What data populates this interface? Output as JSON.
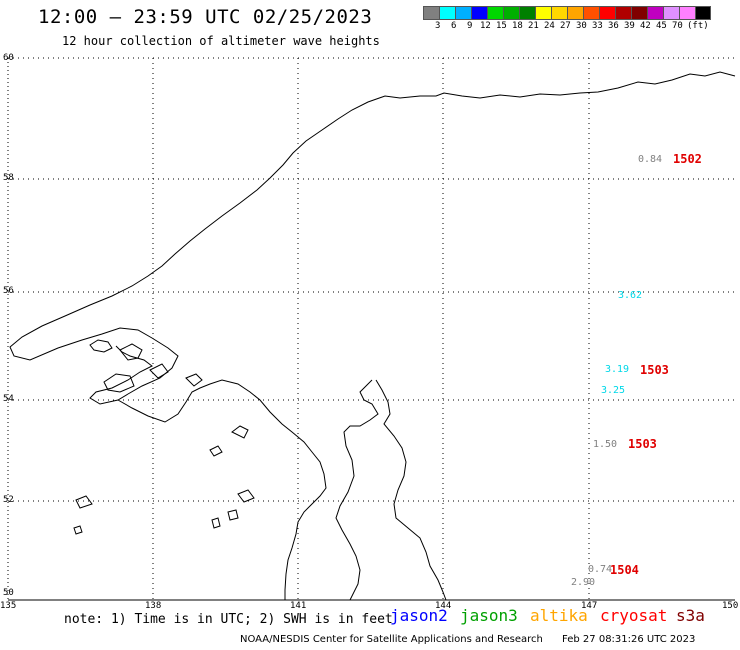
{
  "header": {
    "title": "12:00 — 23:59 UTC 02/25/2023",
    "subtitle": "12 hour collection of altimeter wave heights"
  },
  "color_scale": {
    "colors": [
      "#808080",
      "#00ffff",
      "#00b0ff",
      "#0000ff",
      "#00d800",
      "#00b000",
      "#008000",
      "#ffff00",
      "#ffd700",
      "#ffa500",
      "#ff5000",
      "#ff0000",
      "#b00000",
      "#800000",
      "#c000c0",
      "#e090ff",
      "#ff80ff",
      "#000000"
    ],
    "labels": [
      "3",
      "6",
      "9",
      "12",
      "15",
      "18",
      "21",
      "24",
      "27",
      "30",
      "33",
      "36",
      "39",
      "42",
      "45",
      "70"
    ],
    "unit": "(ft)"
  },
  "axes": {
    "lat_labels": [
      "60",
      "58",
      "56",
      "54",
      "52",
      "50"
    ],
    "lon_labels": [
      "135",
      "138",
      "141",
      "144",
      "147",
      "150"
    ]
  },
  "observations": [
    {
      "value": "0.84",
      "color": "#808080"
    },
    {
      "value": "3.62",
      "color": "#00e0f0"
    },
    {
      "value": "3.19",
      "color": "#00e0f0"
    },
    {
      "value": "3.25",
      "color": "#00e0f0"
    },
    {
      "value": "1.50",
      "color": "#808080"
    },
    {
      "value": "0.74",
      "color": "#808080"
    },
    {
      "value": "2.90",
      "color": "#808080"
    }
  ],
  "buoys": [
    "1502",
    "1503",
    "1503",
    "1504"
  ],
  "legend": {
    "note": "note: 1) Time is in UTC; 2) SWH is in feet",
    "satellites": [
      {
        "name": "jason2",
        "color": "#0000ff"
      },
      {
        "name": "jason3",
        "color": "#00a000"
      },
      {
        "name": "altika",
        "color": "#ffa500"
      },
      {
        "name": "cryosat",
        "color": "#ff0000"
      },
      {
        "name": "s3a",
        "color": "#800000"
      }
    ]
  },
  "footer": {
    "credit": "NOAA/NESDIS Center for Satellite Applications and Research",
    "timestamp": "Feb 27 08:31:26 UTC 2023"
  }
}
